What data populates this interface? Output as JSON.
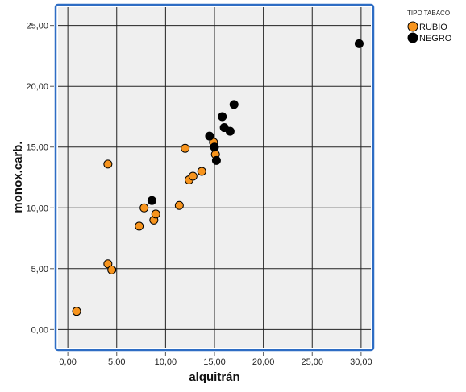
{
  "chart_data": {
    "type": "scatter",
    "xlabel": "alquitrán",
    "ylabel": "monox.carb.",
    "xlim": [
      -1.0,
      31.0
    ],
    "ylim": [
      -1.5,
      26.5
    ],
    "x_ticks": [
      0,
      5,
      10,
      15,
      20,
      25,
      30
    ],
    "y_ticks": [
      0,
      5,
      10,
      15,
      20,
      25
    ],
    "x_tick_labels": [
      "0,00",
      "5,00",
      "10,00",
      "15,00",
      "20,00",
      "25,00",
      "30,00"
    ],
    "y_tick_labels": [
      "0,00",
      "5,00",
      "10,00",
      "15,00",
      "20,00",
      "25,00"
    ],
    "grid": true,
    "legend": {
      "title": "TIPO TABACO",
      "position": "top-right"
    },
    "series": [
      {
        "name": "RUBIO",
        "color": "#F7941D",
        "points": [
          {
            "x": 0.9,
            "y": 1.5
          },
          {
            "x": 4.1,
            "y": 5.4
          },
          {
            "x": 4.5,
            "y": 4.9
          },
          {
            "x": 4.1,
            "y": 13.6
          },
          {
            "x": 7.3,
            "y": 8.5
          },
          {
            "x": 7.8,
            "y": 10.0
          },
          {
            "x": 8.8,
            "y": 9.0
          },
          {
            "x": 9.0,
            "y": 9.5
          },
          {
            "x": 11.4,
            "y": 10.2
          },
          {
            "x": 12.0,
            "y": 14.9
          },
          {
            "x": 12.4,
            "y": 12.3
          },
          {
            "x": 12.8,
            "y": 12.6
          },
          {
            "x": 13.7,
            "y": 13.0
          },
          {
            "x": 14.9,
            "y": 15.4
          },
          {
            "x": 15.1,
            "y": 14.4
          }
        ]
      },
      {
        "name": "NEGRO",
        "color": "#000000",
        "points": [
          {
            "x": 8.6,
            "y": 10.6
          },
          {
            "x": 14.5,
            "y": 15.9
          },
          {
            "x": 15.0,
            "y": 15.0
          },
          {
            "x": 15.2,
            "y": 13.9
          },
          {
            "x": 15.8,
            "y": 17.5
          },
          {
            "x": 16.0,
            "y": 16.6
          },
          {
            "x": 16.6,
            "y": 16.3
          },
          {
            "x": 17.0,
            "y": 18.5
          },
          {
            "x": 29.8,
            "y": 23.5
          }
        ]
      }
    ]
  },
  "colors": {
    "plot_background": "#EFEFEF",
    "frame": "#2E6DC4",
    "grid": "#222222"
  }
}
